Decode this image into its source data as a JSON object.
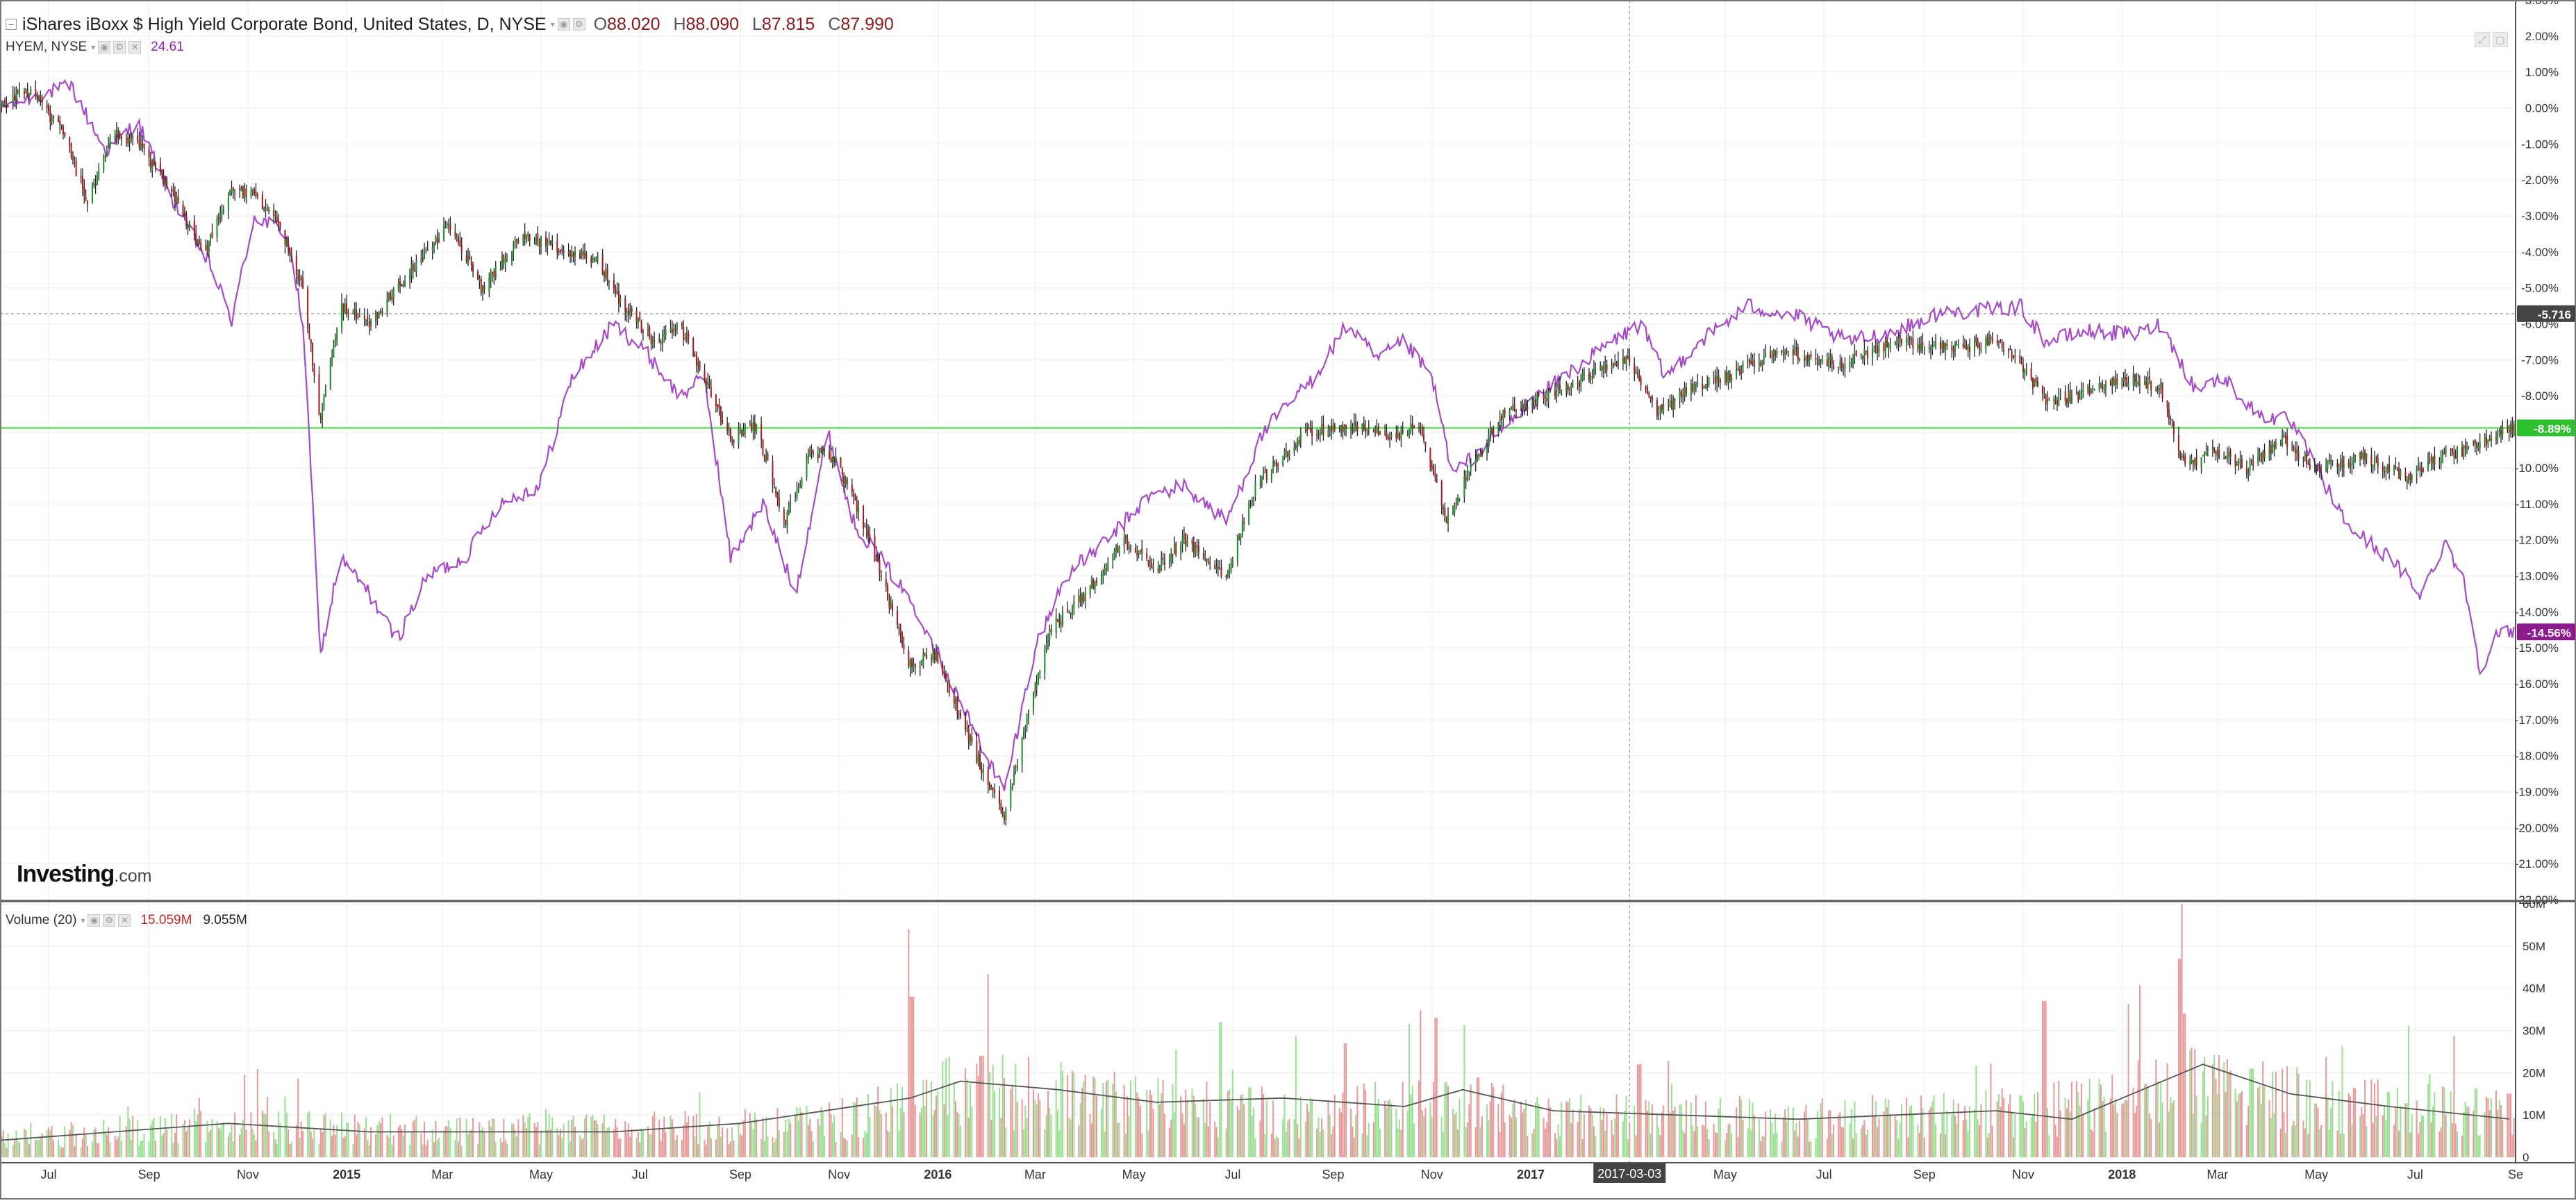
{
  "header": {
    "main_title": "iShares iBoxx $ High Yield Corporate Bond, United States, D, NYSE",
    "ohlc": [
      {
        "key": "O",
        "value": "88.020"
      },
      {
        "key": "H",
        "value": "88.090"
      },
      {
        "key": "L",
        "value": "87.815"
      },
      {
        "key": "C",
        "value": "87.990"
      }
    ],
    "compare_label": "HYEM, NYSE",
    "compare_value": "24.61",
    "volume_label": "Volume (20)",
    "volume_value_1": "15.059M",
    "volume_value_2": "9.055M"
  },
  "watermark": {
    "brand": "Investing",
    "suffix": ".com"
  },
  "colors": {
    "up": "#1b8a2a",
    "down": "#a31b1b",
    "wick": "#222222",
    "compare_line": "#a64ac9",
    "vol_up": "#9bdf94",
    "vol_down": "#e79a9a",
    "vol_ma": "#555555",
    "hline": "#7fe07f",
    "badge_last": "#2ec02e",
    "badge_compare": "#8e1b8e",
    "badge_cursor": "#444444",
    "grid": "#eeeeee"
  },
  "icons": [
    "collapse-icon",
    "eye-icon",
    "settings-icon",
    "close-icon",
    "chevron-down-icon"
  ],
  "chart_data": [
    {
      "type": "candlestick",
      "title": "iShares iBoxx $ High Yield Corporate Bond, United States, D, NYSE",
      "y_unit": "percent change",
      "ylim": [
        -22,
        3
      ],
      "yticks": [
        3,
        2,
        1,
        0,
        -1,
        -2,
        -3,
        -4,
        -5,
        -6,
        -7,
        -8,
        -9,
        -10,
        -11,
        -12,
        -13,
        -14,
        -15,
        -16,
        -17,
        -18,
        -19,
        -20,
        -21,
        -22
      ],
      "x_range": [
        "2014-06-01",
        "2018-09-01"
      ],
      "xticks": [
        {
          "date": "2014-07-01",
          "label": "Jul"
        },
        {
          "date": "2014-09-01",
          "label": "Sep"
        },
        {
          "date": "2014-11-01",
          "label": "Nov"
        },
        {
          "date": "2015-01-01",
          "label": "2015",
          "bold": true
        },
        {
          "date": "2015-03-01",
          "label": "Mar"
        },
        {
          "date": "2015-05-01",
          "label": "May"
        },
        {
          "date": "2015-07-01",
          "label": "Jul"
        },
        {
          "date": "2015-09-01",
          "label": "Sep"
        },
        {
          "date": "2015-11-01",
          "label": "Nov"
        },
        {
          "date": "2016-01-01",
          "label": "2016",
          "bold": true
        },
        {
          "date": "2016-03-01",
          "label": "Mar"
        },
        {
          "date": "2016-05-01",
          "label": "May"
        },
        {
          "date": "2016-07-01",
          "label": "Jul"
        },
        {
          "date": "2016-09-01",
          "label": "Sep"
        },
        {
          "date": "2016-11-01",
          "label": "Nov"
        },
        {
          "date": "2017-01-01",
          "label": "2017",
          "bold": true
        },
        {
          "date": "2017-05-01",
          "label": "May"
        },
        {
          "date": "2017-07-01",
          "label": "Jul"
        },
        {
          "date": "2017-09-01",
          "label": "Sep"
        },
        {
          "date": "2017-11-01",
          "label": "Nov"
        },
        {
          "date": "2018-01-01",
          "label": "2018",
          "bold": true
        },
        {
          "date": "2018-03-01",
          "label": "Mar"
        },
        {
          "date": "2018-05-01",
          "label": "May"
        },
        {
          "date": "2018-07-01",
          "label": "Jul"
        },
        {
          "date": "2018-09-01",
          "label": "Se"
        }
      ],
      "cursor": {
        "date": "2017-03-03",
        "value": -5.716,
        "label": "-5.716"
      },
      "last_value": {
        "value": -8.89,
        "label": "-8.89%"
      },
      "series": [
        {
          "name": "iShares iBoxx $ High Yield Corporate Bond",
          "style": "candles",
          "points": [
            [
              "2014-06-01",
              0.0
            ],
            [
              "2014-06-20",
              0.5
            ],
            [
              "2014-07-10",
              -0.7
            ],
            [
              "2014-07-25",
              -2.6
            ],
            [
              "2014-08-10",
              -0.6
            ],
            [
              "2014-08-25",
              -1.0
            ],
            [
              "2014-09-15",
              -2.3
            ],
            [
              "2014-10-05",
              -4.1
            ],
            [
              "2014-10-20",
              -2.3
            ],
            [
              "2014-11-05",
              -2.4
            ],
            [
              "2014-11-20",
              -3.2
            ],
            [
              "2014-12-05",
              -5.0
            ],
            [
              "2014-12-16",
              -8.7
            ],
            [
              "2014-12-28",
              -5.5
            ],
            [
              "2015-01-15",
              -6.0
            ],
            [
              "2015-02-10",
              -4.5
            ],
            [
              "2015-03-05",
              -3.2
            ],
            [
              "2015-03-25",
              -5.0
            ],
            [
              "2015-04-20",
              -3.5
            ],
            [
              "2015-05-15",
              -4.0
            ],
            [
              "2015-06-05",
              -4.2
            ],
            [
              "2015-06-20",
              -5.5
            ],
            [
              "2015-07-10",
              -6.5
            ],
            [
              "2015-07-25",
              -6.0
            ],
            [
              "2015-08-15",
              -8.0
            ],
            [
              "2015-08-26",
              -9.2
            ],
            [
              "2015-09-10",
              -8.8
            ],
            [
              "2015-09-29",
              -11.5
            ],
            [
              "2015-10-15",
              -9.5
            ],
            [
              "2015-10-30",
              -9.8
            ],
            [
              "2015-11-20",
              -12.0
            ],
            [
              "2015-12-14",
              -15.5
            ],
            [
              "2015-12-31",
              -15.2
            ],
            [
              "2016-01-20",
              -17.5
            ],
            [
              "2016-02-11",
              -19.8
            ],
            [
              "2016-02-25",
              -17.0
            ],
            [
              "2016-03-10",
              -14.5
            ],
            [
              "2016-04-01",
              -13.5
            ],
            [
              "2016-04-25",
              -12.0
            ],
            [
              "2016-05-15",
              -12.8
            ],
            [
              "2016-06-01",
              -12.0
            ],
            [
              "2016-06-27",
              -13.0
            ],
            [
              "2016-07-15",
              -10.5
            ],
            [
              "2016-08-15",
              -9.0
            ],
            [
              "2016-09-15",
              -8.8
            ],
            [
              "2016-10-05",
              -9.2
            ],
            [
              "2016-10-25",
              -8.8
            ],
            [
              "2016-11-10",
              -11.5
            ],
            [
              "2016-11-25",
              -10.0
            ],
            [
              "2016-12-15",
              -8.5
            ],
            [
              "2017-01-10",
              -8.0
            ],
            [
              "2017-02-15",
              -7.3
            ],
            [
              "2017-03-03",
              -7.0
            ],
            [
              "2017-03-20",
              -8.5
            ],
            [
              "2017-04-10",
              -7.8
            ],
            [
              "2017-05-01",
              -7.5
            ],
            [
              "2017-06-05",
              -6.7
            ],
            [
              "2017-07-10",
              -7.1
            ],
            [
              "2017-08-15",
              -6.5
            ],
            [
              "2017-09-15",
              -6.7
            ],
            [
              "2017-10-15",
              -6.5
            ],
            [
              "2017-11-01",
              -7.2
            ],
            [
              "2017-11-15",
              -8.2
            ],
            [
              "2017-12-10",
              -7.9
            ],
            [
              "2018-01-10",
              -7.5
            ],
            [
              "2018-01-25",
              -7.8
            ],
            [
              "2018-02-09",
              -10.0
            ],
            [
              "2018-02-25",
              -9.5
            ],
            [
              "2018-03-20",
              -10.0
            ],
            [
              "2018-04-10",
              -9.2
            ],
            [
              "2018-05-01",
              -10.0
            ],
            [
              "2018-06-01",
              -9.7
            ],
            [
              "2018-06-25",
              -10.3
            ],
            [
              "2018-07-10",
              -9.8
            ],
            [
              "2018-08-01",
              -9.5
            ],
            [
              "2018-08-28",
              -8.9
            ]
          ]
        },
        {
          "name": "HYEM, NYSE",
          "style": "line",
          "points": [
            [
              "2014-06-01",
              0.0
            ],
            [
              "2014-06-20",
              0.3
            ],
            [
              "2014-07-15",
              0.6
            ],
            [
              "2014-08-05",
              -1.2
            ],
            [
              "2014-08-25",
              -0.4
            ],
            [
              "2014-09-15",
              -2.5
            ],
            [
              "2014-10-10",
              -4.5
            ],
            [
              "2014-10-22",
              -5.9
            ],
            [
              "2014-11-05",
              -3.0
            ],
            [
              "2014-11-25",
              -3.5
            ],
            [
              "2014-12-05",
              -6.0
            ],
            [
              "2014-12-16",
              -15.2
            ],
            [
              "2014-12-28",
              -12.5
            ],
            [
              "2015-01-15",
              -13.5
            ],
            [
              "2015-02-01",
              -14.8
            ],
            [
              "2015-02-20",
              -13.0
            ],
            [
              "2015-03-15",
              -12.5
            ],
            [
              "2015-04-05",
              -11.0
            ],
            [
              "2015-04-30",
              -10.5
            ],
            [
              "2015-05-20",
              -7.5
            ],
            [
              "2015-06-15",
              -6.0
            ],
            [
              "2015-07-05",
              -6.8
            ],
            [
              "2015-07-25",
              -8.0
            ],
            [
              "2015-08-10",
              -7.5
            ],
            [
              "2015-08-26",
              -12.5
            ],
            [
              "2015-09-15",
              -11.0
            ],
            [
              "2015-10-05",
              -13.5
            ],
            [
              "2015-10-25",
              -9.0
            ],
            [
              "2015-11-10",
              -11.5
            ],
            [
              "2015-12-01",
              -12.8
            ],
            [
              "2015-12-20",
              -14.0
            ],
            [
              "2016-01-20",
              -17.0
            ],
            [
              "2016-02-11",
              -19.0
            ],
            [
              "2016-03-01",
              -15.0
            ],
            [
              "2016-03-20",
              -13.0
            ],
            [
              "2016-04-15",
              -12.0
            ],
            [
              "2016-05-10",
              -10.8
            ],
            [
              "2016-06-01",
              -10.5
            ],
            [
              "2016-06-27",
              -11.5
            ],
            [
              "2016-07-20",
              -9.0
            ],
            [
              "2016-08-20",
              -7.5
            ],
            [
              "2016-09-10",
              -6.0
            ],
            [
              "2016-09-28",
              -7.0
            ],
            [
              "2016-10-15",
              -6.5
            ],
            [
              "2016-11-01",
              -7.5
            ],
            [
              "2016-11-14",
              -10.2
            ],
            [
              "2016-12-01",
              -9.5
            ],
            [
              "2016-12-25",
              -8.5
            ],
            [
              "2017-01-20",
              -7.5
            ],
            [
              "2017-02-20",
              -6.5
            ],
            [
              "2017-03-10",
              -6.0
            ],
            [
              "2017-03-25",
              -7.5
            ],
            [
              "2017-04-15",
              -6.5
            ],
            [
              "2017-05-15",
              -5.5
            ],
            [
              "2017-06-15",
              -5.8
            ],
            [
              "2017-07-15",
              -6.5
            ],
            [
              "2017-08-15",
              -6.2
            ],
            [
              "2017-09-10",
              -5.7
            ],
            [
              "2017-10-15",
              -5.6
            ],
            [
              "2017-10-30",
              -5.5
            ],
            [
              "2017-11-15",
              -6.5
            ],
            [
              "2017-12-10",
              -6.2
            ],
            [
              "2018-01-10",
              -6.3
            ],
            [
              "2018-01-25",
              -6.0
            ],
            [
              "2018-02-15",
              -7.8
            ],
            [
              "2018-03-05",
              -7.5
            ],
            [
              "2018-03-25",
              -8.5
            ],
            [
              "2018-04-15",
              -8.7
            ],
            [
              "2018-05-01",
              -10.0
            ],
            [
              "2018-05-20",
              -11.6
            ],
            [
              "2018-06-15",
              -12.5
            ],
            [
              "2018-07-05",
              -13.5
            ],
            [
              "2018-07-20",
              -12.0
            ],
            [
              "2018-08-01",
              -13.3
            ],
            [
              "2018-08-10",
              -15.6
            ],
            [
              "2018-08-20",
              -14.7
            ],
            [
              "2018-08-28",
              -14.56
            ]
          ],
          "last_label": "-14.56%"
        }
      ]
    },
    {
      "type": "bar",
      "title": "Volume (20)",
      "ylim": [
        0,
        60
      ],
      "y_unit": "millions of shares",
      "yticks": [
        {
          "value": 0,
          "label": "0"
        },
        {
          "value": 10,
          "label": "10M"
        },
        {
          "value": 20,
          "label": "20M"
        },
        {
          "value": 30,
          "label": "30M"
        },
        {
          "value": 40,
          "label": "40M"
        },
        {
          "value": 50,
          "label": "50M"
        },
        {
          "value": 60,
          "label": "60M"
        }
      ],
      "baseline": [
        [
          "2014-06-01",
          4
        ],
        [
          "2014-10-15",
          7
        ],
        [
          "2015-01-15",
          6
        ],
        [
          "2015-06-15",
          6
        ],
        [
          "2015-10-15",
          7
        ],
        [
          "2015-12-01",
          10
        ],
        [
          "2016-01-15",
          15
        ],
        [
          "2016-04-15",
          12
        ],
        [
          "2016-08-15",
          9
        ],
        [
          "2016-11-15",
          12
        ],
        [
          "2017-01-15",
          9
        ],
        [
          "2017-06-15",
          8
        ],
        [
          "2017-11-15",
          10
        ],
        [
          "2018-02-15",
          15
        ],
        [
          "2018-05-15",
          11
        ],
        [
          "2018-08-28",
          9
        ]
      ],
      "ma": [
        [
          "2014-06-01",
          4
        ],
        [
          "2014-10-20",
          8
        ],
        [
          "2015-01-15",
          6
        ],
        [
          "2015-06-15",
          6
        ],
        [
          "2015-09-01",
          8
        ],
        [
          "2015-12-15",
          14
        ],
        [
          "2016-01-15",
          18
        ],
        [
          "2016-03-15",
          16
        ],
        [
          "2016-05-15",
          13
        ],
        [
          "2016-08-01",
          14
        ],
        [
          "2016-10-15",
          12
        ],
        [
          "2016-11-20",
          16
        ],
        [
          "2017-01-15",
          11
        ],
        [
          "2017-06-15",
          9
        ],
        [
          "2017-10-15",
          11
        ],
        [
          "2017-12-01",
          9
        ],
        [
          "2018-02-20",
          22
        ],
        [
          "2018-04-15",
          15
        ],
        [
          "2018-06-15",
          12
        ],
        [
          "2018-08-28",
          9.055
        ]
      ],
      "spikes": [
        [
          "2015-12-14",
          54,
          "down"
        ],
        [
          "2015-12-16",
          38,
          "down"
        ],
        [
          "2016-01-28",
          24,
          "down"
        ],
        [
          "2016-06-24",
          32,
          "up"
        ],
        [
          "2016-09-09",
          27,
          "down"
        ],
        [
          "2016-11-04",
          33,
          "down"
        ],
        [
          "2017-03-09",
          22,
          "down"
        ],
        [
          "2017-11-14",
          37,
          "down"
        ],
        [
          "2018-02-05",
          47,
          "down"
        ],
        [
          "2018-02-08",
          34,
          "down"
        ],
        [
          "2018-03-22",
          21,
          "up"
        ],
        [
          "2018-08-28",
          15.059,
          "down"
        ]
      ]
    }
  ]
}
